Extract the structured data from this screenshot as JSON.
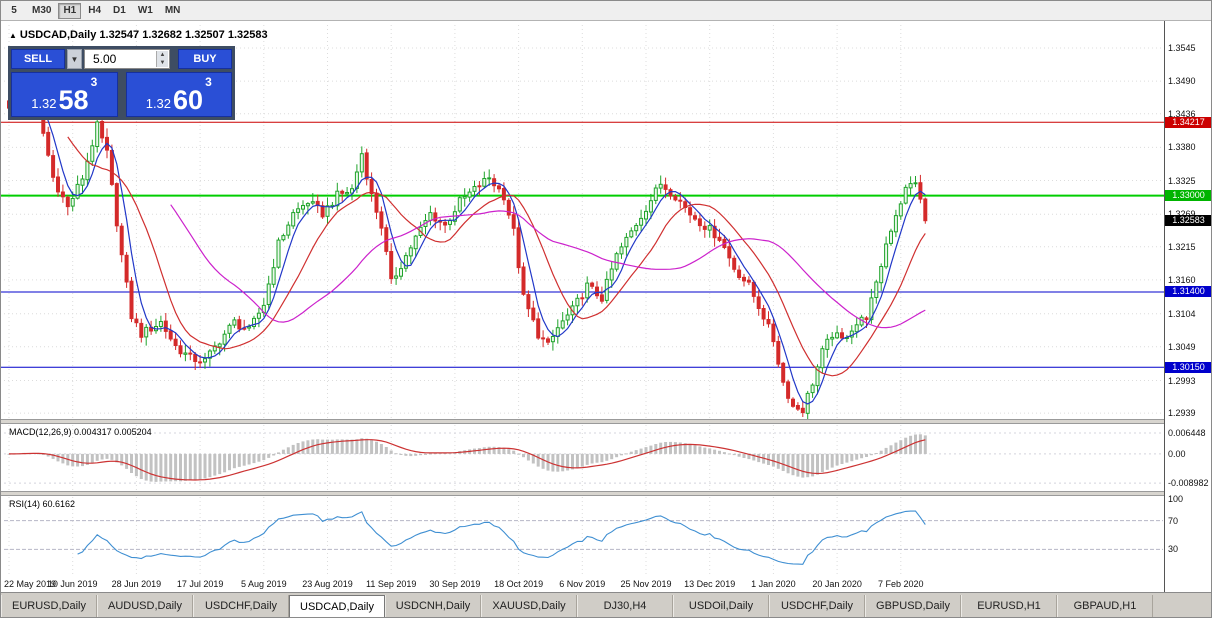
{
  "toolbar": {
    "timeframes": [
      "5",
      "M30",
      "H1",
      "H4",
      "D1",
      "W1",
      "MN"
    ],
    "active": "H1"
  },
  "chart_header": {
    "symbol": "USDCAD,Daily",
    "ohlc": "1.32547 1.32682 1.32507 1.32583"
  },
  "trade_panel": {
    "sell_label": "SELL",
    "buy_label": "BUY",
    "volume": "5.00",
    "sell_price_main": "1.32",
    "sell_price_big": "58",
    "sell_price_sup": "3",
    "buy_price_main": "1.32",
    "buy_price_big": "60",
    "buy_price_sup": "3"
  },
  "price_scale": {
    "labels": [
      {
        "text": "1.3545",
        "price": 1.3545
      },
      {
        "text": "1.3490",
        "price": 1.349
      },
      {
        "text": "1.3436",
        "price": 1.3436
      },
      {
        "text": "1.3380",
        "price": 1.338
      },
      {
        "text": "1.3325",
        "price": 1.3325
      },
      {
        "text": "1.3269",
        "price": 1.3269
      },
      {
        "text": "1.3215",
        "price": 1.3215
      },
      {
        "text": "1.3160",
        "price": 1.316
      },
      {
        "text": "1.3104",
        "price": 1.3104
      },
      {
        "text": "1.3049",
        "price": 1.3049
      },
      {
        "text": "1.2993",
        "price": 1.2993
      },
      {
        "text": "1.2939",
        "price": 1.2939
      }
    ],
    "tags": [
      {
        "text": "1.34217",
        "price": 1.34217,
        "color": "#cc0000"
      },
      {
        "text": "1.33000",
        "price": 1.33,
        "color": "#00b400"
      },
      {
        "text": "1.32583",
        "price": 1.32583,
        "color": "#000000"
      },
      {
        "text": "1.31400",
        "price": 1.314,
        "color": "#0000cc"
      },
      {
        "text": "1.30150",
        "price": 1.3015,
        "color": "#0000cc"
      }
    ]
  },
  "x_axis": {
    "labels": [
      {
        "text": "22 May 2019",
        "bar": 0
      },
      {
        "text": "10 Jun 2019",
        "bar": 13
      },
      {
        "text": "28 Jun 2019",
        "bar": 26
      },
      {
        "text": "17 Jul 2019",
        "bar": 39
      },
      {
        "text": "5 Aug 2019",
        "bar": 52
      },
      {
        "text": "23 Aug 2019",
        "bar": 65
      },
      {
        "text": "11 Sep 2019",
        "bar": 78
      },
      {
        "text": "30 Sep 2019",
        "bar": 91
      },
      {
        "text": "18 Oct 2019",
        "bar": 104
      },
      {
        "text": "6 Nov 2019",
        "bar": 117
      },
      {
        "text": "25 Nov 2019",
        "bar": 130
      },
      {
        "text": "13 Dec 2019",
        "bar": 143
      },
      {
        "text": "1 Jan 2020",
        "bar": 156
      },
      {
        "text": "20 Jan 2020",
        "bar": 169
      },
      {
        "text": "7 Feb 2020",
        "bar": 182
      }
    ]
  },
  "macd": {
    "title": "MACD(12,26,9)",
    "values": "0.004317 0.005204",
    "axis": [
      {
        "text": "0.006448",
        "value": 0.006448
      },
      {
        "text": "0.00",
        "value": 0.0
      },
      {
        "text": "-0.008982",
        "value": -0.008982
      }
    ]
  },
  "rsi": {
    "title": "RSI(14)",
    "value": "60.6162",
    "axis": [
      {
        "text": "100",
        "value": 100
      },
      {
        "text": "70",
        "value": 70
      },
      {
        "text": "30",
        "value": 30
      }
    ]
  },
  "tabs": {
    "items": [
      "EURUSD,Daily",
      "AUDUSD,Daily",
      "USDCHF,Daily",
      "USDCAD,Daily",
      "USDCNH,Daily",
      "XAUUSD,Daily",
      "DJ30,H4",
      "USDOil,Daily",
      "USDCHF,Daily",
      "GBPUSD,Daily",
      "EURUSD,H1",
      "GBPAUD,H1"
    ],
    "active": 3
  },
  "colors": {
    "accent_blue": "#2a4fd6",
    "panel_bg": "#3e4d63",
    "up": "#1fa32a",
    "down": "#d42a2a"
  },
  "chart_data": {
    "type": "candlestick",
    "symbol": "USDCAD",
    "timeframe": "Daily",
    "bars": 188,
    "ylim": [
      1.2921,
      1.3583
    ],
    "last_ohlc": {
      "open": 1.32547,
      "high": 1.32682,
      "low": 1.32507,
      "close": 1.32583
    },
    "up_color": "#1fa32a",
    "down_color": "#d42a2a",
    "close_path": [
      [
        0,
        1.345
      ],
      [
        3,
        1.3465
      ],
      [
        6,
        1.344
      ],
      [
        9,
        1.333
      ],
      [
        12,
        1.328
      ],
      [
        15,
        1.333
      ],
      [
        18,
        1.3415
      ],
      [
        20,
        1.337
      ],
      [
        23,
        1.32
      ],
      [
        25,
        1.31
      ],
      [
        27,
        1.307
      ],
      [
        31,
        1.309
      ],
      [
        34,
        1.305
      ],
      [
        37,
        1.303
      ],
      [
        40,
        1.3025
      ],
      [
        43,
        1.306
      ],
      [
        46,
        1.309
      ],
      [
        49,
        1.3075
      ],
      [
        52,
        1.312
      ],
      [
        55,
        1.322
      ],
      [
        58,
        1.327
      ],
      [
        61,
        1.329
      ],
      [
        64,
        1.327
      ],
      [
        67,
        1.33
      ],
      [
        70,
        1.331
      ],
      [
        72,
        1.337
      ],
      [
        74,
        1.33
      ],
      [
        76,
        1.325
      ],
      [
        78,
        1.3155
      ],
      [
        80,
        1.3185
      ],
      [
        83,
        1.323
      ],
      [
        86,
        1.327
      ],
      [
        89,
        1.325
      ],
      [
        92,
        1.329
      ],
      [
        95,
        1.331
      ],
      [
        98,
        1.333
      ],
      [
        101,
        1.33
      ],
      [
        103,
        1.324
      ],
      [
        105,
        1.313
      ],
      [
        108,
        1.307
      ],
      [
        110,
        1.305
      ],
      [
        112,
        1.308
      ],
      [
        115,
        1.311
      ],
      [
        118,
        1.315
      ],
      [
        121,
        1.313
      ],
      [
        124,
        1.32
      ],
      [
        127,
        1.324
      ],
      [
        130,
        1.328
      ],
      [
        133,
        1.332
      ],
      [
        136,
        1.33
      ],
      [
        139,
        1.327
      ],
      [
        142,
        1.325
      ],
      [
        145,
        1.323
      ],
      [
        148,
        1.318
      ],
      [
        151,
        1.315
      ],
      [
        154,
        1.31
      ],
      [
        156,
        1.306
      ],
      [
        158,
        1.299
      ],
      [
        160,
        1.295
      ],
      [
        162,
        1.2945
      ],
      [
        164,
        1.299
      ],
      [
        166,
        1.304
      ],
      [
        168,
        1.307
      ],
      [
        170,
        1.306
      ],
      [
        172,
        1.308
      ],
      [
        175,
        1.31
      ],
      [
        177,
        1.315
      ],
      [
        179,
        1.322
      ],
      [
        181,
        1.327
      ],
      [
        183,
        1.331
      ],
      [
        185,
        1.3325
      ],
      [
        186,
        1.329
      ],
      [
        187,
        1.32583
      ]
    ],
    "hlines": [
      {
        "price": 1.34217,
        "color": "#cc0000",
        "width": 1
      },
      {
        "price": 1.33,
        "color": "#00ce00",
        "width": 2
      },
      {
        "price": 1.314,
        "color": "#0000cc",
        "width": 1
      },
      {
        "price": 1.3015,
        "color": "#0000cc",
        "width": 1
      }
    ],
    "moving_averages": [
      {
        "period": 5,
        "color": "#2238c8"
      },
      {
        "period": 13,
        "color": "#d03030"
      },
      {
        "period": 34,
        "color": "#cc22cc"
      }
    ],
    "indicators": {
      "macd": {
        "fast": 12,
        "slow": 26,
        "signal": 9,
        "current_main": 0.004317,
        "current_signal": 0.005204
      },
      "rsi": {
        "period": 14,
        "current": 60.6162,
        "levels": [
          70,
          30
        ]
      }
    }
  }
}
